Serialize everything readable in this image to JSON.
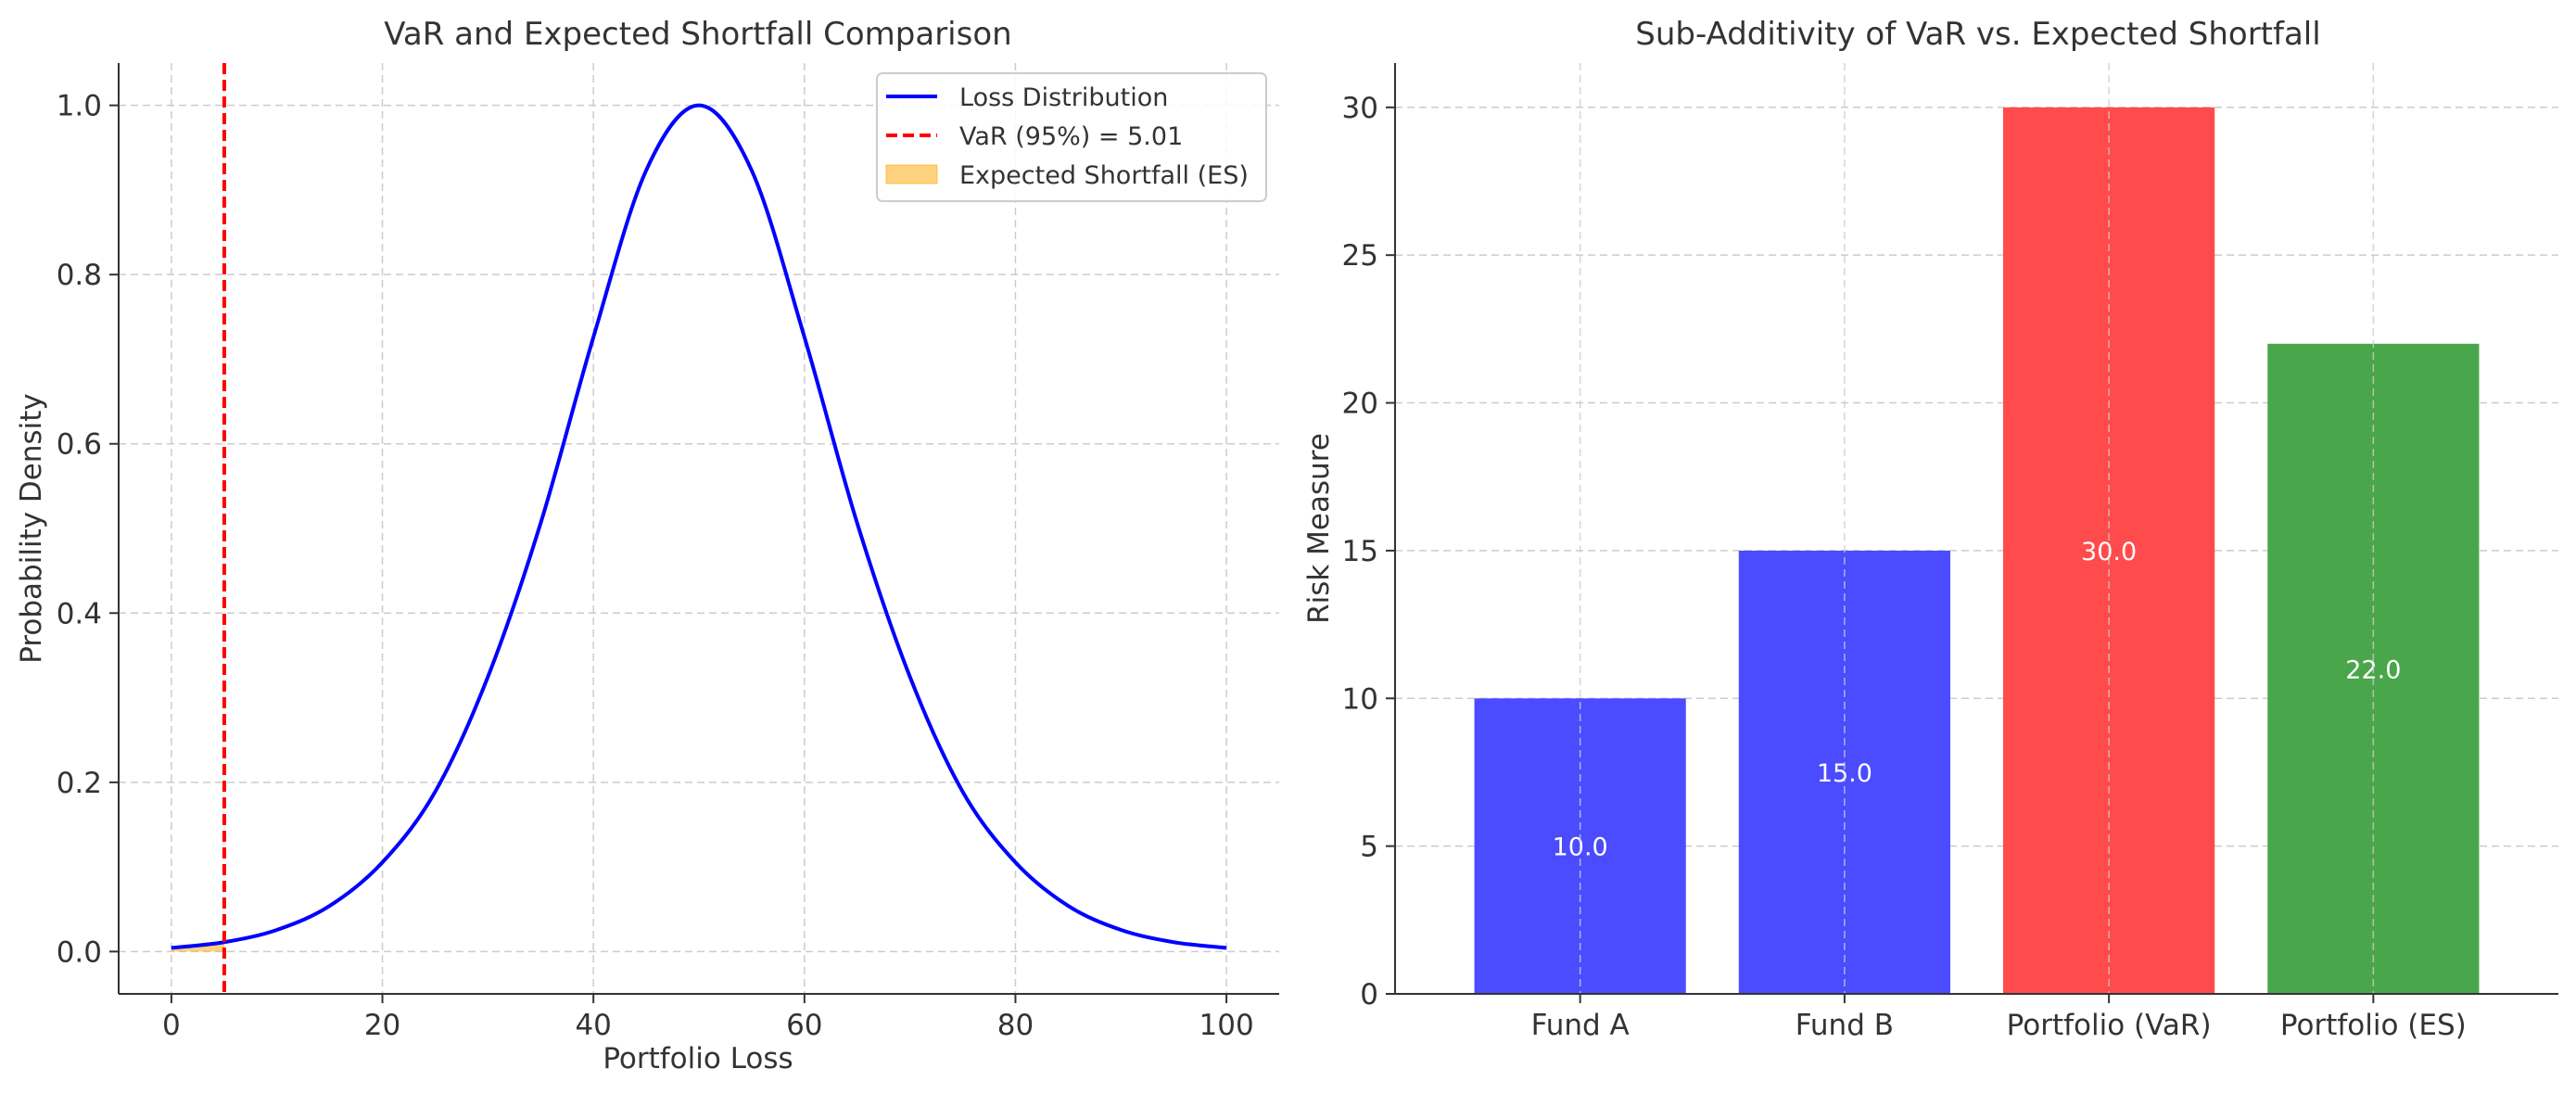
{
  "chart_data": [
    {
      "type": "line",
      "title": "VaR and Expected Shortfall Comparison",
      "xlabel": "Portfolio Loss",
      "ylabel": "Probability Density",
      "xlim": [
        -5,
        105
      ],
      "ylim": [
        -0.05,
        1.05
      ],
      "xticks": [
        0,
        20,
        40,
        60,
        80,
        100
      ],
      "yticks": [
        0.0,
        0.2,
        0.4,
        0.6,
        0.8,
        1.0
      ],
      "xtick_labels": [
        "0",
        "20",
        "40",
        "60",
        "80",
        "100"
      ],
      "ytick_labels": [
        "0.0",
        "0.2",
        "0.4",
        "0.6",
        "0.8",
        "1.0"
      ],
      "grid": true,
      "legend_position": "top-right",
      "series": [
        {
          "name": "Loss Distribution",
          "style": "line",
          "color": "#0000ff",
          "x": [
            0,
            5,
            10,
            15,
            20,
            25,
            30,
            35,
            40,
            45,
            50,
            55,
            60,
            65,
            70,
            75,
            80,
            85,
            90,
            95,
            100
          ],
          "y": [
            0.0044,
            0.0111,
            0.0256,
            0.054,
            0.1054,
            0.1889,
            0.3247,
            0.5063,
            0.7261,
            0.9231,
            1.0,
            0.9231,
            0.7261,
            0.5063,
            0.3247,
            0.1889,
            0.1054,
            0.054,
            0.0256,
            0.0111,
            0.0044
          ]
        },
        {
          "name": "VaR (95%) = 5.01",
          "style": "dashed-vline",
          "color": "#ff0000",
          "x": 5.01
        },
        {
          "name": "Expected Shortfall (ES)",
          "style": "area",
          "color": "#ffa500",
          "x_range": [
            0,
            5.01
          ]
        }
      ]
    },
    {
      "type": "bar",
      "title": "Sub-Additivity of VaR vs. Expected Shortfall",
      "xlabel": "",
      "ylabel": "Risk Measure",
      "ylim": [
        0,
        31.5
      ],
      "yticks": [
        0,
        5,
        10,
        15,
        20,
        25,
        30
      ],
      "ytick_labels": [
        "0",
        "5",
        "10",
        "15",
        "20",
        "25",
        "30"
      ],
      "grid": true,
      "categories": [
        "Fund A",
        "Fund B",
        "Portfolio (VaR)",
        "Portfolio (ES)"
      ],
      "values": [
        10,
        15,
        30,
        22
      ],
      "value_labels": [
        "10.0",
        "15.0",
        "30.0",
        "22.0"
      ],
      "colors": [
        "#4b4bff",
        "#4b4bff",
        "#ff4b4b",
        "#4aa64a"
      ]
    }
  ]
}
